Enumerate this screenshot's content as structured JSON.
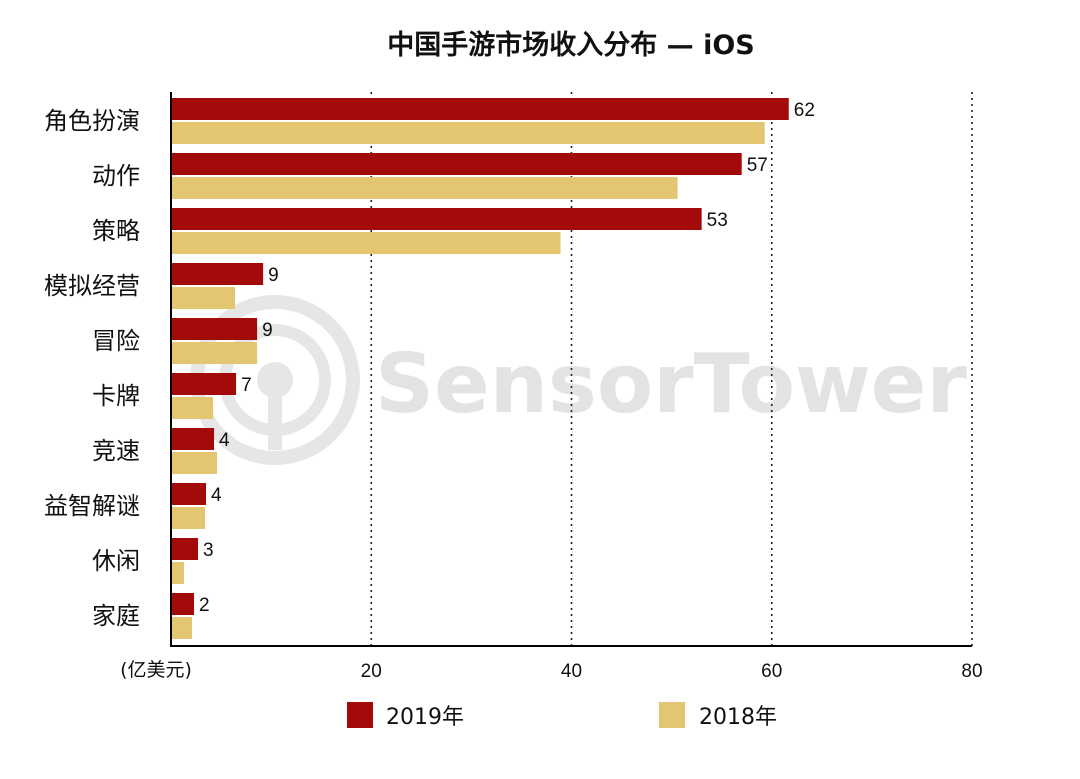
{
  "watermark": "SensorTower",
  "chart_data": {
    "type": "bar",
    "orientation": "horizontal",
    "title": "中国手游市场收入分布 — iOS",
    "unit_label": "(亿美元)",
    "categories": [
      "角色扮演",
      "动作",
      "策略",
      "模拟经营",
      "冒险",
      "卡牌",
      "竞速",
      "益智解谜",
      "休闲",
      "家庭"
    ],
    "series": [
      {
        "name": "2019年",
        "color": "#a30b0b",
        "values": [
          62,
          57,
          53,
          9,
          9,
          7,
          4,
          4,
          3,
          2
        ],
        "plotted_values": [
          61.7,
          57.0,
          53.0,
          9.2,
          8.6,
          6.5,
          4.3,
          3.5,
          2.7,
          2.3
        ],
        "labels": [
          "62",
          "57",
          "53",
          "9",
          "9",
          "7",
          "4",
          "4",
          "3",
          "2"
        ]
      },
      {
        "name": "2018年",
        "color": "#e3c572",
        "values": [
          59.3,
          50.6,
          38.9,
          6.4,
          8.6,
          4.2,
          4.6,
          3.4,
          1.3,
          2.1
        ]
      }
    ],
    "xlim": [
      0,
      80
    ],
    "xticks": [
      20,
      40,
      60,
      80
    ],
    "xtick_labels": [
      "20",
      "40",
      "60",
      "80"
    ],
    "grid": "vertical dotted",
    "legend_position": "bottom"
  }
}
